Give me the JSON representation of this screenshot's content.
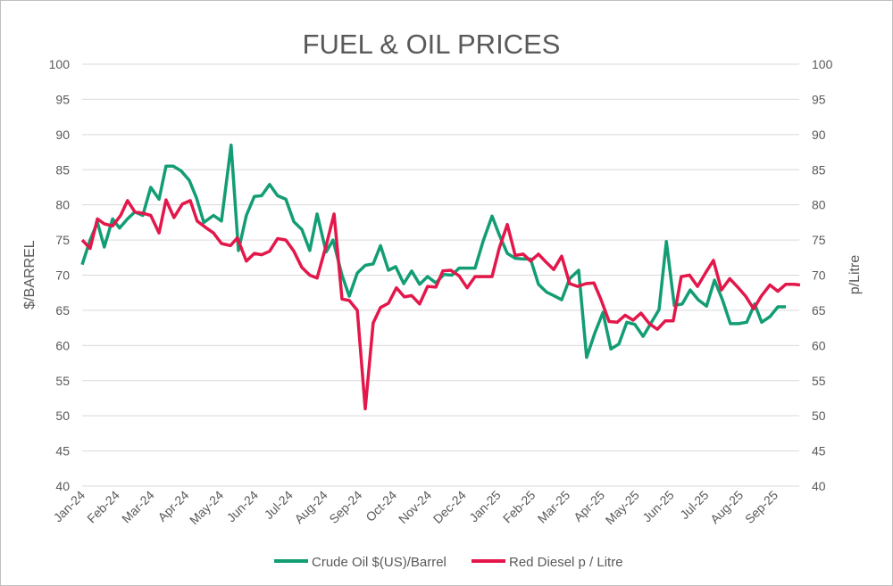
{
  "chart_data": {
    "type": "line",
    "title": "FUEL & OIL PRICES",
    "ylabel": "$/BARREL",
    "y2label": "p/Litre",
    "ylim": [
      40,
      100
    ],
    "y2lim": [
      40,
      100
    ],
    "yticks": [
      40,
      45,
      50,
      55,
      60,
      65,
      70,
      75,
      80,
      85,
      90,
      95,
      100
    ],
    "grid": true,
    "legend": "bottom",
    "x_unit": "months since Jan-24",
    "categories": [
      "Jan-24",
      "Feb-24",
      "Mar-24",
      "Apr-24",
      "May-24",
      "Jun-24",
      "Jul-24",
      "Aug-24",
      "Sep-24",
      "Oct-24",
      "Nov-24",
      "Dec-24",
      "Jan-25",
      "Feb-25",
      "Mar-25",
      "Apr-25",
      "May-25",
      "Jun-25",
      "Jul-25",
      "Aug-25",
      "Sep-25"
    ],
    "series": [
      {
        "name": "Crude Oil $(US)/Barrel",
        "color": "#129d74",
        "axis": "left",
        "x": [
          0,
          0.23,
          0.44,
          0.64,
          0.88,
          1.08,
          1.31,
          1.52,
          1.75,
          1.98,
          2.22,
          2.42,
          2.63,
          2.86,
          3.09,
          3.3,
          3.51,
          3.79,
          4.02,
          4.3,
          4.51,
          4.74,
          4.97,
          5.18,
          5.41,
          5.64,
          5.88,
          6.11,
          6.34,
          6.57,
          6.78,
          7.04,
          7.24,
          7.5,
          7.71,
          7.94,
          8.17,
          8.4,
          8.61,
          8.84,
          9.05,
          9.28,
          9.51,
          9.74,
          9.97,
          10.21,
          10.44,
          10.67,
          10.88,
          11.11,
          11.34,
          11.57,
          11.83,
          12.04,
          12.27,
          12.5,
          12.73,
          12.94,
          13.17,
          13.4,
          13.61,
          13.84,
          14.07,
          14.33,
          14.56,
          14.79,
          15.03,
          15.26,
          15.49,
          15.72,
          15.95,
          16.19,
          16.42,
          16.65,
          16.86,
          17.09,
          17.32,
          17.55,
          17.78,
          18.02,
          18.25,
          18.48,
          18.71,
          18.94,
          19.18,
          19.41,
          19.61,
          19.85,
          20.08,
          20.31
        ],
        "y": [
          71.5,
          75,
          77.5,
          74,
          78,
          76.7,
          78,
          79,
          78.5,
          82.5,
          80.8,
          85.5,
          85.5,
          84.8,
          83.5,
          81,
          77.5,
          78.5,
          77.7,
          88.5,
          73.5,
          78.5,
          81.2,
          81.3,
          82.9,
          81.3,
          80.8,
          77.6,
          76.5,
          73.5,
          78.7,
          73.3,
          75,
          70,
          67,
          70.3,
          71.4,
          71.6,
          74.2,
          70.7,
          71.2,
          68.8,
          70.6,
          68.7,
          69.8,
          68.9,
          70.1,
          70,
          71,
          71,
          71,
          74.8,
          78.4,
          75.7,
          73.1,
          72.4,
          72.3,
          72.3,
          68.7,
          67.6,
          67.1,
          66.5,
          69.5,
          70.7,
          58.3,
          61.7,
          64.7,
          59.5,
          60.2,
          63.3,
          63,
          61.3,
          63.2,
          65.1,
          74.8,
          65.7,
          65.9,
          67.9,
          66.5,
          65.6,
          69.3,
          66.5,
          63.1,
          63.1,
          63.3,
          65.9,
          63.3,
          64.1,
          65.5,
          65.5
        ]
      },
      {
        "name": "Red Diesel p / Litre",
        "color": "#e3174a",
        "axis": "right",
        "x": [
          0,
          0.23,
          0.44,
          0.64,
          0.88,
          1.11,
          1.31,
          1.52,
          1.75,
          1.98,
          2.22,
          2.42,
          2.65,
          2.89,
          3.12,
          3.32,
          3.56,
          3.79,
          4.02,
          4.28,
          4.48,
          4.74,
          4.97,
          5.18,
          5.41,
          5.64,
          5.88,
          6.11,
          6.34,
          6.57,
          6.78,
          7.04,
          7.27,
          7.5,
          7.71,
          7.94,
          8.17,
          8.4,
          8.61,
          8.84,
          9.07,
          9.3,
          9.51,
          9.74,
          9.97,
          10.21,
          10.41,
          10.64,
          10.88,
          11.11,
          11.34,
          11.57,
          11.83,
          12.04,
          12.27,
          12.5,
          12.73,
          12.94,
          13.17,
          13.4,
          13.61,
          13.84,
          14.07,
          14.3,
          14.54,
          14.77,
          14.97,
          15.21,
          15.44,
          15.67,
          15.9,
          16.13,
          16.37,
          16.6,
          16.83,
          17.06,
          17.29,
          17.53,
          17.76,
          17.99,
          18.22,
          18.45,
          18.69,
          18.92,
          19.15,
          19.38,
          19.61,
          19.85,
          20.08,
          20.31,
          20.54,
          20.72
        ],
        "y": [
          75,
          73.8,
          78,
          77.3,
          77,
          78.5,
          80.6,
          79,
          78.8,
          78.5,
          76,
          80.7,
          78.2,
          80.1,
          80.6,
          77.7,
          76.8,
          76,
          74.5,
          74.2,
          75.3,
          72,
          73.1,
          72.9,
          73.4,
          75.2,
          75,
          73.4,
          71.1,
          70,
          69.6,
          74.2,
          78.7,
          66.6,
          66.4,
          65,
          51,
          63.2,
          65.4,
          66,
          68.2,
          66.9,
          67.1,
          65.9,
          68.4,
          68.3,
          70.6,
          70.7,
          69.9,
          68.2,
          69.8,
          69.8,
          69.8,
          73.9,
          77.2,
          72.8,
          73,
          72,
          73,
          71.8,
          70.8,
          72.7,
          68.8,
          68.4,
          68.8,
          68.9,
          66.6,
          63.4,
          63.3,
          64.3,
          63.6,
          64.6,
          63.1,
          62.3,
          63.5,
          63.5,
          69.8,
          70,
          68.4,
          70.3,
          72.1,
          67.9,
          69.5,
          68.3,
          67,
          65.2,
          67.1,
          68.6,
          67.7,
          68.7,
          68.7,
          68.6
        ]
      }
    ]
  }
}
